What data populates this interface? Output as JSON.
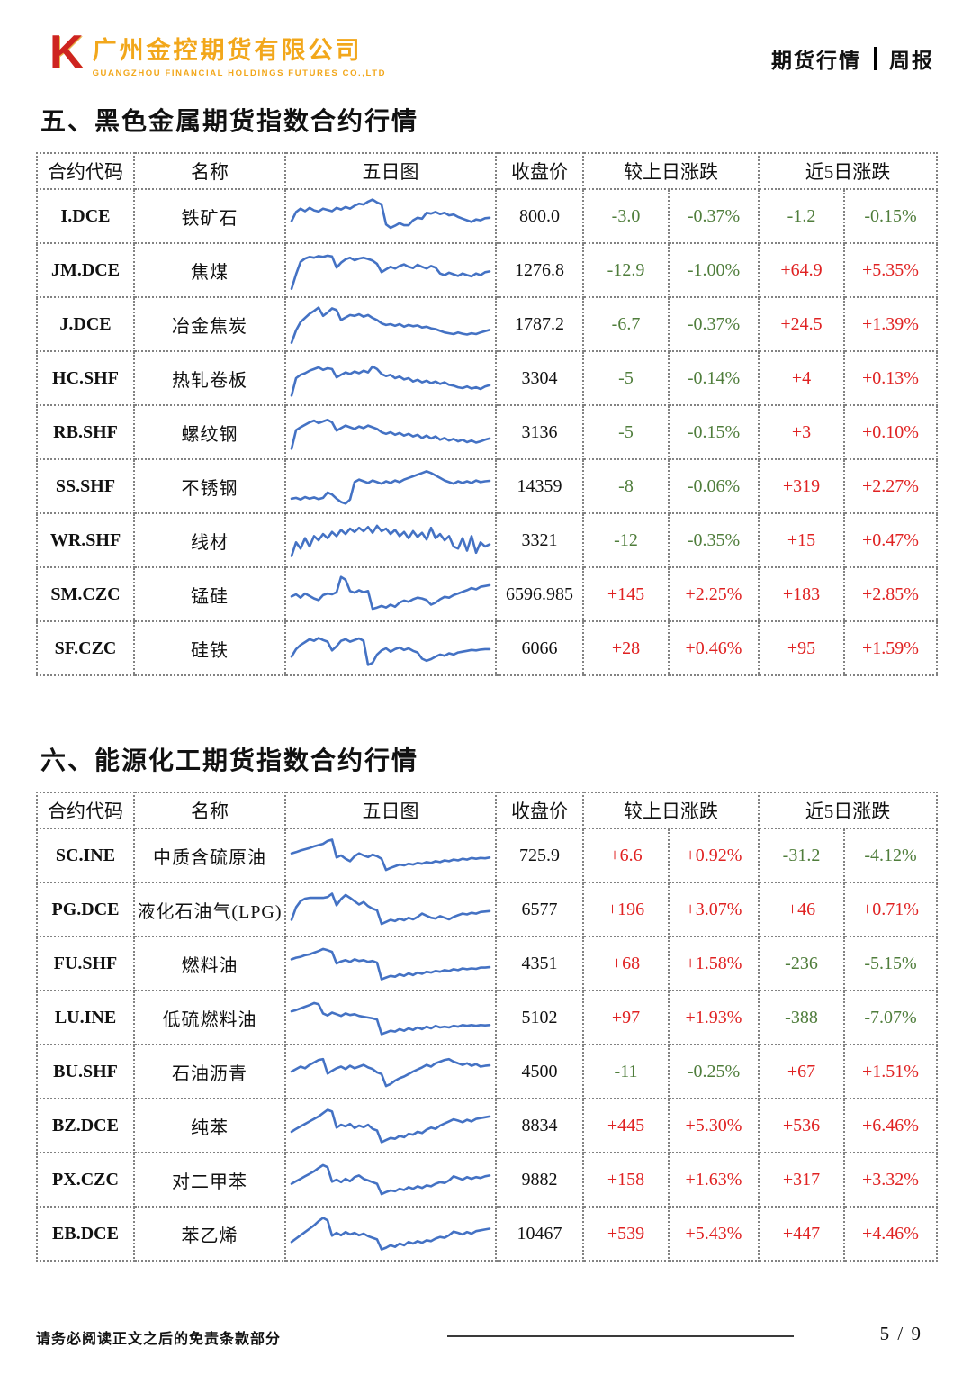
{
  "page": {
    "header": {
      "logo_mark": "K",
      "company_cn": "广州金控期货有限公司",
      "company_en": "GUANGZHOU FINANCIAL HOLDINGS FUTURES CO.,LTD",
      "right_title": "期货行情",
      "right_subtitle": "周报"
    },
    "footer": {
      "disclaimer": "请务必阅读正文之后的免责条款部分",
      "page_number": "5 / 9"
    }
  },
  "colors": {
    "up": "#e02222",
    "down": "#4f7d3b",
    "sparkline": "#4472c4",
    "brand_orange": "#f2a71b",
    "brand_red": "#ce2420"
  },
  "tables": [
    {
      "title": "五、黑色金属期货指数合约行情",
      "headers": {
        "code": "合约代码",
        "name": "名称",
        "chart": "五日图",
        "close": "收盘价",
        "day_change": "较上日涨跌",
        "five_day_change": "近5日涨跌"
      },
      "rows": [
        {
          "code": "I.DCE",
          "name": "铁矿石",
          "close": "800.0",
          "chg": "-3.0",
          "chg_pct": "-0.37%",
          "chg5": "-1.2",
          "chg5_pct": "-0.15%",
          "spark": [
            38,
            60,
            68,
            62,
            70,
            64,
            61,
            68,
            65,
            62,
            70,
            66,
            72,
            68,
            75,
            80,
            78,
            85,
            90,
            83,
            78,
            30,
            22,
            27,
            33,
            28,
            28,
            40,
            46,
            44,
            58,
            56,
            60,
            55,
            58,
            52,
            54,
            48,
            44,
            40,
            36,
            42,
            40,
            45,
            46
          ]
        },
        {
          "code": "JM.DCE",
          "name": "焦煤",
          "close": "1276.8",
          "chg": "-12.9",
          "chg_pct": "-1.00%",
          "chg5": "+64.9",
          "chg5_pct": "+5.35%",
          "spark": [
            5,
            40,
            70,
            78,
            82,
            80,
            84,
            82,
            85,
            83,
            56,
            68,
            76,
            80,
            74,
            78,
            80,
            77,
            73,
            65,
            45,
            52,
            58,
            54,
            60,
            64,
            58,
            55,
            63,
            58,
            54,
            60,
            56,
            42,
            38,
            44,
            40,
            36,
            42,
            38,
            35,
            42,
            38,
            45,
            47
          ]
        },
        {
          "code": "J.DCE",
          "name": "冶金焦炭",
          "close": "1787.2",
          "chg": "-6.7",
          "chg_pct": "-0.37%",
          "chg5": "+24.5",
          "chg5_pct": "+1.39%",
          "spark": [
            5,
            35,
            55,
            65,
            75,
            82,
            90,
            70,
            78,
            88,
            84,
            60,
            66,
            72,
            70,
            74,
            68,
            72,
            65,
            60,
            52,
            48,
            50,
            46,
            50,
            44,
            48,
            45,
            47,
            42,
            44,
            40,
            38,
            34,
            30,
            28,
            26,
            30,
            27,
            25,
            28,
            26,
            30,
            33,
            36
          ]
        },
        {
          "code": "HC.SHF",
          "name": "热轧卷板",
          "close": "3304",
          "chg": "-5",
          "chg_pct": "-0.14%",
          "chg5": "+4",
          "chg5_pct": "+0.13%",
          "spark": [
            8,
            50,
            58,
            62,
            68,
            72,
            76,
            70,
            74,
            72,
            52,
            58,
            64,
            60,
            66,
            62,
            68,
            64,
            78,
            72,
            60,
            55,
            58,
            50,
            54,
            47,
            50,
            42,
            46,
            40,
            44,
            38,
            42,
            36,
            40,
            34,
            32,
            28,
            26,
            30,
            25,
            28,
            24,
            30,
            33
          ]
        },
        {
          "code": "RB.SHF",
          "name": "螺纹钢",
          "close": "3136",
          "chg": "-5",
          "chg_pct": "-0.15%",
          "chg5": "+3",
          "chg5_pct": "+0.10%",
          "spark": [
            10,
            55,
            62,
            68,
            74,
            78,
            72,
            76,
            80,
            74,
            54,
            60,
            66,
            62,
            58,
            64,
            60,
            66,
            62,
            58,
            50,
            46,
            50,
            44,
            48,
            42,
            46,
            40,
            44,
            36,
            42,
            35,
            40,
            32,
            36,
            30,
            34,
            28,
            32,
            26,
            30,
            25,
            28,
            32,
            35
          ]
        },
        {
          "code": "SS.SHF",
          "name": "不锈钢",
          "close": "14359",
          "chg": "-8",
          "chg_pct": "-0.06%",
          "chg5": "+319",
          "chg5_pct": "+2.27%",
          "spark": [
            20,
            22,
            18,
            24,
            20,
            23,
            19,
            22,
            35,
            30,
            20,
            12,
            8,
            18,
            60,
            66,
            62,
            58,
            64,
            60,
            56,
            62,
            58,
            64,
            60,
            66,
            70,
            74,
            78,
            82,
            86,
            82,
            76,
            70,
            64,
            60,
            56,
            62,
            58,
            62,
            58,
            64,
            60,
            62,
            63
          ]
        },
        {
          "code": "WR.SHF",
          "name": "线材",
          "close": "3321",
          "chg": "-12",
          "chg_pct": "-0.35%",
          "chg5": "+15",
          "chg5_pct": "+0.47%",
          "spark": [
            12,
            45,
            30,
            55,
            35,
            60,
            50,
            65,
            55,
            70,
            60,
            75,
            65,
            78,
            70,
            80,
            72,
            82,
            68,
            85,
            72,
            78,
            65,
            75,
            60,
            70,
            55,
            72,
            58,
            68,
            52,
            80,
            55,
            65,
            50,
            60,
            35,
            30,
            55,
            25,
            60,
            20,
            45,
            35,
            40
          ]
        },
        {
          "code": "SM.CZC",
          "name": "锰硅",
          "close": "6596.985",
          "chg": "+145",
          "chg_pct": "+2.25%",
          "chg5": "+183",
          "chg5_pct": "+2.85%",
          "spark": [
            45,
            50,
            42,
            52,
            46,
            40,
            36,
            48,
            52,
            50,
            55,
            92,
            85,
            58,
            54,
            60,
            55,
            58,
            15,
            18,
            22,
            18,
            25,
            20,
            30,
            35,
            32,
            38,
            42,
            40,
            36,
            25,
            30,
            38,
            44,
            42,
            48,
            52,
            56,
            60,
            65,
            62,
            68,
            70,
            72
          ]
        },
        {
          "code": "SF.CZC",
          "name": "硅铁",
          "close": "6066",
          "chg": "+28",
          "chg_pct": "+0.46%",
          "chg5": "+95",
          "chg5_pct": "+1.59%",
          "spark": [
            30,
            48,
            58,
            65,
            72,
            68,
            75,
            70,
            66,
            45,
            55,
            68,
            72,
            66,
            70,
            74,
            68,
            10,
            15,
            35,
            45,
            50,
            42,
            48,
            52,
            46,
            50,
            44,
            40,
            25,
            20,
            24,
            30,
            35,
            32,
            38,
            35,
            40,
            42,
            44,
            46,
            45,
            47,
            48,
            48
          ]
        }
      ]
    },
    {
      "title": "六、能源化工期货指数合约行情",
      "headers": {
        "code": "合约代码",
        "name": "名称",
        "chart": "五日图",
        "close": "收盘价",
        "day_change": "较上日涨跌",
        "five_day_change": "近5日涨跌"
      },
      "rows": [
        {
          "code": "SC.INE",
          "name": "中质含硫原油",
          "close": "725.9",
          "chg": "+6.6",
          "chg_pct": "+0.92%",
          "chg5": "-31.2",
          "chg5_pct": "-4.12%",
          "spark": [
            55,
            58,
            62,
            65,
            68,
            72,
            75,
            78,
            85,
            88,
            45,
            50,
            42,
            36,
            48,
            55,
            50,
            46,
            52,
            48,
            42,
            15,
            20,
            24,
            28,
            26,
            30,
            28,
            32,
            30,
            34,
            32,
            36,
            34,
            38,
            36,
            40,
            38,
            42,
            40,
            44,
            42,
            44,
            43,
            45
          ]
        },
        {
          "code": "PG.DCE",
          "name": "液化石油气(LPG)",
          "close": "6577",
          "chg": "+196",
          "chg_pct": "+3.07%",
          "chg5": "+46",
          "chg5_pct": "+0.71%",
          "spark": [
            25,
            55,
            70,
            76,
            78,
            78,
            78,
            78,
            80,
            88,
            60,
            75,
            85,
            78,
            70,
            62,
            68,
            58,
            52,
            48,
            15,
            20,
            25,
            22,
            28,
            24,
            30,
            26,
            32,
            40,
            35,
            30,
            28,
            34,
            30,
            26,
            32,
            36,
            40,
            38,
            42,
            40,
            44,
            45,
            46
          ]
        },
        {
          "code": "FU.SHF",
          "name": "燃料油",
          "close": "4351",
          "chg": "+68",
          "chg_pct": "+1.58%",
          "chg5": "-236",
          "chg5_pct": "-5.15%",
          "spark": [
            60,
            64,
            66,
            70,
            72,
            76,
            80,
            85,
            82,
            78,
            50,
            55,
            58,
            54,
            60,
            56,
            58,
            54,
            56,
            52,
            12,
            16,
            20,
            18,
            24,
            20,
            26,
            22,
            28,
            25,
            30,
            28,
            32,
            30,
            34,
            32,
            36,
            34,
            38,
            36,
            38,
            37,
            40,
            40,
            41
          ]
        },
        {
          "code": "LU.INE",
          "name": "低硫燃料油",
          "close": "5102",
          "chg": "+97",
          "chg_pct": "+1.93%",
          "chg5": "-388",
          "chg5_pct": "-7.07%",
          "spark": [
            65,
            68,
            72,
            76,
            80,
            85,
            82,
            60,
            55,
            62,
            58,
            54,
            60,
            56,
            58,
            54,
            52,
            50,
            48,
            45,
            10,
            14,
            18,
            16,
            22,
            18,
            24,
            20,
            26,
            22,
            28,
            24,
            30,
            26,
            28,
            26,
            30,
            28,
            32,
            30,
            32,
            30,
            32,
            31,
            32
          ]
        },
        {
          "code": "BU.SHF",
          "name": "石油沥青",
          "close": "4500",
          "chg": "-11",
          "chg_pct": "-0.25%",
          "chg5": "+67",
          "chg5_pct": "+1.51%",
          "spark": [
            50,
            56,
            62,
            58,
            66,
            72,
            78,
            80,
            45,
            52,
            58,
            62,
            56,
            64,
            58,
            62,
            66,
            60,
            56,
            48,
            44,
            15,
            20,
            28,
            34,
            38,
            44,
            50,
            55,
            60,
            66,
            62,
            70,
            74,
            78,
            80,
            74,
            70,
            66,
            70,
            64,
            68,
            62,
            64,
            65
          ]
        },
        {
          "code": "BZ.DCE",
          "name": "纯苯",
          "close": "8834",
          "chg": "+445",
          "chg_pct": "+5.30%",
          "chg5": "+536",
          "chg5_pct": "+6.46%",
          "spark": [
            35,
            42,
            48,
            54,
            60,
            66,
            72,
            80,
            88,
            84,
            45,
            52,
            48,
            54,
            44,
            50,
            46,
            52,
            42,
            38,
            10,
            15,
            20,
            18,
            25,
            22,
            30,
            28,
            35,
            32,
            40,
            45,
            42,
            50,
            55,
            60,
            65,
            62,
            58,
            64,
            60,
            66,
            68,
            70,
            72
          ]
        },
        {
          "code": "PX.CZC",
          "name": "对二甲苯",
          "close": "9882",
          "chg": "+158",
          "chg_pct": "+1.63%",
          "chg5": "+317",
          "chg5_pct": "+3.32%",
          "spark": [
            40,
            46,
            52,
            58,
            64,
            70,
            78,
            85,
            80,
            45,
            50,
            44,
            52,
            46,
            56,
            60,
            52,
            48,
            44,
            40,
            15,
            20,
            24,
            22,
            28,
            25,
            32,
            28,
            34,
            30,
            36,
            34,
            40,
            44,
            42,
            48,
            58,
            54,
            50,
            56,
            52,
            56,
            54,
            58,
            60
          ]
        },
        {
          "code": "EB.DCE",
          "name": "苯乙烯",
          "close": "10467",
          "chg": "+539",
          "chg_pct": "+5.43%",
          "chg5": "+447",
          "chg5_pct": "+4.46%",
          "spark": [
            30,
            38,
            46,
            54,
            62,
            70,
            80,
            88,
            82,
            45,
            52,
            46,
            54,
            48,
            52,
            46,
            50,
            44,
            40,
            36,
            12,
            16,
            22,
            18,
            26,
            22,
            30,
            26,
            32,
            28,
            34,
            32,
            38,
            42,
            40,
            46,
            55,
            52,
            48,
            54,
            50,
            56,
            58,
            60,
            62
          ]
        }
      ]
    }
  ]
}
